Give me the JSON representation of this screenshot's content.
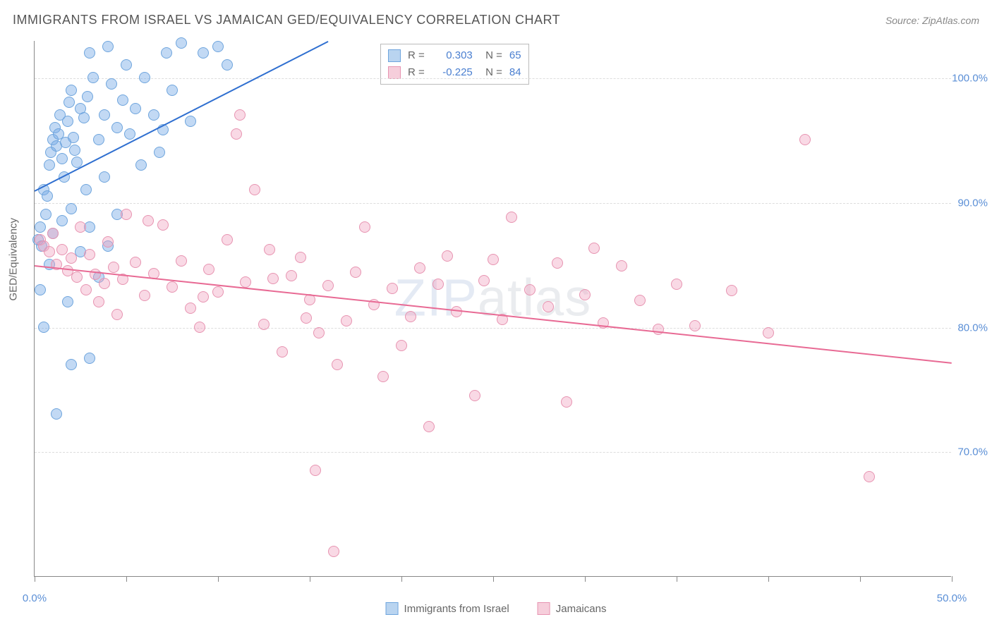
{
  "title": "IMMIGRANTS FROM ISRAEL VS JAMAICAN GED/EQUIVALENCY CORRELATION CHART",
  "source_prefix": "Source: ",
  "source": "ZipAtlas.com",
  "y_axis_label": "GED/Equivalency",
  "watermark_bold": "ZIP",
  "watermark_thin": "atlas",
  "chart": {
    "type": "scatter",
    "background_color": "#ffffff",
    "grid_color": "#dddddd",
    "axis_color": "#888888",
    "xlim": [
      0,
      50
    ],
    "ylim": [
      60,
      103
    ],
    "x_ticks": [
      0,
      5,
      10,
      15,
      20,
      25,
      30,
      35,
      40,
      45,
      50
    ],
    "x_tick_labels": {
      "0": "0.0%",
      "50": "50.0%"
    },
    "y_ticks": [
      70,
      80,
      90,
      100
    ],
    "y_tick_labels": {
      "70": "70.0%",
      "80": "80.0%",
      "90": "90.0%",
      "100": "100.0%"
    },
    "tick_label_color": "#5b8fd6",
    "tick_fontsize": 15,
    "marker_radius": 8,
    "series": [
      {
        "name": "Immigrants from Israel",
        "fill_color": "rgba(120,170,230,0.45)",
        "stroke_color": "#6fa5dd",
        "swatch_fill": "#b9d4f0",
        "swatch_border": "#6fa5dd",
        "trend": {
          "x1": 0,
          "y1": 91,
          "x2": 16,
          "y2": 103,
          "color": "#2f6fd0",
          "width": 2
        },
        "R": "0.303",
        "N": "65",
        "points": [
          [
            0.2,
            87
          ],
          [
            0.3,
            88
          ],
          [
            0.4,
            86.5
          ],
          [
            0.5,
            91
          ],
          [
            0.6,
            89
          ],
          [
            0.7,
            90.5
          ],
          [
            0.8,
            93
          ],
          [
            0.9,
            94
          ],
          [
            1.0,
            95
          ],
          [
            1.1,
            96
          ],
          [
            1.2,
            94.5
          ],
          [
            1.3,
            95.5
          ],
          [
            1.4,
            97
          ],
          [
            1.5,
            93.5
          ],
          [
            1.6,
            92
          ],
          [
            1.7,
            94.8
          ],
          [
            1.8,
            96.5
          ],
          [
            1.9,
            98
          ],
          [
            2.0,
            99
          ],
          [
            2.1,
            95.2
          ],
          [
            2.2,
            94.2
          ],
          [
            2.3,
            93.2
          ],
          [
            2.5,
            97.5
          ],
          [
            2.7,
            96.8
          ],
          [
            2.9,
            98.5
          ],
          [
            3.0,
            102
          ],
          [
            3.2,
            100
          ],
          [
            3.5,
            95
          ],
          [
            3.8,
            97
          ],
          [
            4.0,
            102.5
          ],
          [
            4.2,
            99.5
          ],
          [
            4.5,
            96
          ],
          [
            4.8,
            98.2
          ],
          [
            5.0,
            101
          ],
          [
            0.3,
            83
          ],
          [
            0.8,
            85
          ],
          [
            1.0,
            87.5
          ],
          [
            1.5,
            88.5
          ],
          [
            2.0,
            89.5
          ],
          [
            2.5,
            86
          ],
          [
            3.0,
            88
          ],
          [
            3.5,
            84
          ],
          [
            4.0,
            86.5
          ],
          [
            4.5,
            89
          ],
          [
            5.2,
            95.5
          ],
          [
            5.8,
            93
          ],
          [
            6.5,
            97
          ],
          [
            7.0,
            95.8
          ],
          [
            7.2,
            102
          ],
          [
            7.5,
            99
          ],
          [
            8.0,
            102.8
          ],
          [
            8.5,
            96.5
          ],
          [
            9.2,
            102
          ],
          [
            10.0,
            102.5
          ],
          [
            10.5,
            101
          ],
          [
            2.0,
            77
          ],
          [
            3.0,
            77.5
          ],
          [
            1.2,
            73
          ],
          [
            0.5,
            80
          ],
          [
            6.0,
            100
          ],
          [
            1.8,
            82
          ],
          [
            2.8,
            91
          ],
          [
            3.8,
            92
          ],
          [
            5.5,
            97.5
          ],
          [
            6.8,
            94
          ]
        ]
      },
      {
        "name": "Jamaicans",
        "fill_color": "rgba(240,160,190,0.40)",
        "stroke_color": "#e794b1",
        "swatch_fill": "#f6cedb",
        "swatch_border": "#e794b1",
        "trend": {
          "x1": 0,
          "y1": 85,
          "x2": 50,
          "y2": 77.2,
          "color": "#e86a94",
          "width": 2
        },
        "R": "-0.225",
        "N": "84",
        "points": [
          [
            0.3,
            87
          ],
          [
            0.5,
            86.5
          ],
          [
            0.8,
            86
          ],
          [
            1.0,
            87.5
          ],
          [
            1.2,
            85
          ],
          [
            1.5,
            86.2
          ],
          [
            1.8,
            84.5
          ],
          [
            2.0,
            85.5
          ],
          [
            2.3,
            84
          ],
          [
            2.5,
            88
          ],
          [
            2.8,
            83
          ],
          [
            3.0,
            85.8
          ],
          [
            3.3,
            84.2
          ],
          [
            3.5,
            82
          ],
          [
            3.8,
            83.5
          ],
          [
            4.0,
            86.8
          ],
          [
            4.3,
            84.8
          ],
          [
            4.5,
            81
          ],
          [
            4.8,
            83.8
          ],
          [
            5.0,
            89
          ],
          [
            5.5,
            85.2
          ],
          [
            6.0,
            82.5
          ],
          [
            6.5,
            84.3
          ],
          [
            7.0,
            88.2
          ],
          [
            7.5,
            83.2
          ],
          [
            8.0,
            85.3
          ],
          [
            8.5,
            81.5
          ],
          [
            9.0,
            80
          ],
          [
            9.5,
            84.6
          ],
          [
            10.0,
            82.8
          ],
          [
            10.5,
            87
          ],
          [
            11.0,
            95.5
          ],
          [
            11.2,
            97
          ],
          [
            11.5,
            83.6
          ],
          [
            12.0,
            91
          ],
          [
            12.5,
            80.2
          ],
          [
            13.0,
            83.9
          ],
          [
            13.5,
            78
          ],
          [
            14.0,
            84.1
          ],
          [
            14.5,
            85.6
          ],
          [
            15.0,
            82.2
          ],
          [
            15.3,
            68.5
          ],
          [
            15.5,
            79.5
          ],
          [
            16.0,
            83.3
          ],
          [
            16.5,
            77
          ],
          [
            17.0,
            80.5
          ],
          [
            17.5,
            84.4
          ],
          [
            18.0,
            88
          ],
          [
            18.5,
            81.8
          ],
          [
            19.0,
            76
          ],
          [
            19.5,
            83.1
          ],
          [
            16.3,
            62
          ],
          [
            20.0,
            78.5
          ],
          [
            20.5,
            80.8
          ],
          [
            21.0,
            84.7
          ],
          [
            21.5,
            72
          ],
          [
            22.0,
            83.4
          ],
          [
            22.5,
            85.7
          ],
          [
            23.0,
            81.2
          ],
          [
            24.0,
            74.5
          ],
          [
            24.5,
            83.7
          ],
          [
            25.0,
            85.4
          ],
          [
            25.5,
            80.6
          ],
          [
            26.0,
            88.8
          ],
          [
            27.0,
            83
          ],
          [
            28.0,
            81.6
          ],
          [
            28.5,
            85.1
          ],
          [
            29.0,
            74
          ],
          [
            30.0,
            82.6
          ],
          [
            30.5,
            86.3
          ],
          [
            31.0,
            80.3
          ],
          [
            32.0,
            84.9
          ],
          [
            33.0,
            82.1
          ],
          [
            34.0,
            79.8
          ],
          [
            35.0,
            83.4
          ],
          [
            36.0,
            80.1
          ],
          [
            38.0,
            82.9
          ],
          [
            40.0,
            79.5
          ],
          [
            42.0,
            95
          ],
          [
            45.5,
            68
          ],
          [
            12.8,
            86.2
          ],
          [
            9.2,
            82.4
          ],
          [
            6.2,
            88.5
          ],
          [
            14.8,
            80.7
          ]
        ]
      }
    ]
  },
  "correlation_legend": {
    "r_label": "R =",
    "n_label": "N ="
  }
}
